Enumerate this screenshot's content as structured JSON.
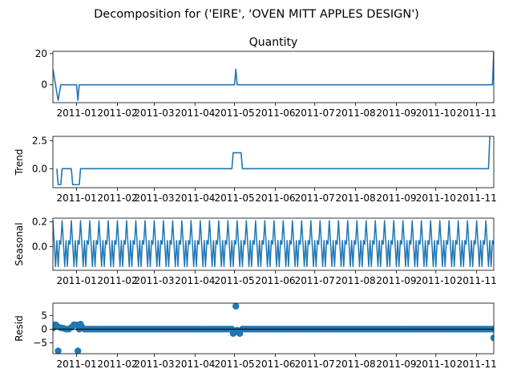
{
  "chart_data": {
    "type": "line",
    "title": "Decomposition for ('EIRE', 'OVEN MITT APPLES DESIGN')",
    "line_color": "#1f77b4",
    "x_tick_labels": [
      "2011-01",
      "2011-02",
      "2011-03",
      "2011-04",
      "2011-05",
      "2011-06",
      "2011-07",
      "2011-08",
      "2011-09",
      "2011-10",
      "2011-11"
    ],
    "x_tick_days": [
      31,
      62,
      90,
      121,
      151,
      182,
      212,
      243,
      274,
      304,
      335
    ],
    "xlim_days": [
      13,
      348
    ],
    "panels": [
      {
        "key": "observed",
        "title": "Quantity",
        "ylabel": "",
        "kind": "line",
        "ylim": [
          -11.5,
          21.5
        ],
        "yticks": [
          0,
          20
        ],
        "ytick_labels": [
          "0",
          "20"
        ],
        "points": [
          [
            13,
            10
          ],
          [
            15,
            0
          ],
          [
            17,
            -10
          ],
          [
            19,
            0
          ],
          [
            31,
            0
          ],
          [
            32,
            -10
          ],
          [
            33,
            0
          ],
          [
            151,
            0
          ],
          [
            152,
            10
          ],
          [
            153,
            0
          ],
          [
            347,
            0
          ],
          [
            348,
            21
          ]
        ]
      },
      {
        "key": "trend",
        "title": "",
        "ylabel": "Trend",
        "kind": "line",
        "ylim": [
          -1.7,
          2.9
        ],
        "yticks": [
          0.0,
          2.5
        ],
        "ytick_labels": [
          "0.0",
          "2.5"
        ],
        "points": [
          [
            16,
            0
          ],
          [
            17,
            -1.43
          ],
          [
            19,
            -1.43
          ],
          [
            20,
            0
          ],
          [
            27,
            0
          ],
          [
            28,
            -1.43
          ],
          [
            33,
            -1.43
          ],
          [
            34,
            0
          ],
          [
            149,
            0
          ],
          [
            150,
            1.43
          ],
          [
            156,
            1.43
          ],
          [
            157,
            0
          ],
          [
            344,
            0
          ],
          [
            345,
            2.86
          ]
        ]
      },
      {
        "key": "seasonal",
        "title": "",
        "ylabel": "Seasonal",
        "kind": "seasonal",
        "ylim": [
          -0.19,
          0.23
        ],
        "yticks": [
          0.0,
          0.2
        ],
        "ytick_labels": [
          "0.0",
          "0.2"
        ],
        "period_days": 7,
        "start_day": 13,
        "end_day": 348,
        "pattern": [
          0.21,
          0.03,
          -0.16,
          0.05,
          -0.16,
          0.05,
          0.02
        ]
      },
      {
        "key": "resid",
        "title": "",
        "ylabel": "Resid",
        "kind": "scatter",
        "ylim": [
          -9.0,
          9.5
        ],
        "yticks": [
          -5,
          0,
          5
        ],
        "ytick_labels": [
          "−5",
          "0",
          "5"
        ],
        "start_day": 13,
        "end_day": 348,
        "step_days": 2,
        "outliers": [
          [
            13,
            0.4
          ],
          [
            14,
            1.4
          ],
          [
            15,
            1.6
          ],
          [
            16,
            1.2
          ],
          [
            17,
            -8
          ],
          [
            19,
            0.5
          ],
          [
            21,
            0.3
          ],
          [
            27,
            0.6
          ],
          [
            29,
            1.6
          ],
          [
            31,
            1.5
          ],
          [
            32,
            -8
          ],
          [
            34,
            1.8
          ],
          [
            35,
            0.8
          ],
          [
            150,
            -1.6
          ],
          [
            151,
            -1.2
          ],
          [
            152,
            8.4
          ],
          [
            153,
            -0.4
          ],
          [
            155,
            -1.6
          ],
          [
            348,
            -3.2
          ]
        ]
      }
    ]
  }
}
